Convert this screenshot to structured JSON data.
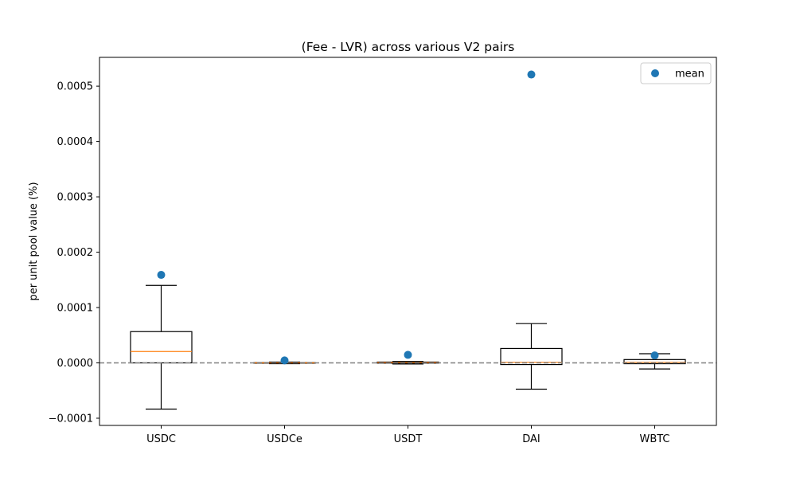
{
  "chart_data": {
    "type": "box",
    "title": "(Fee - LVR) across various V2 pairs",
    "xlabel": "",
    "ylabel": "per unit pool value (%)",
    "ylim": [
      -0.000113,
      0.000552
    ],
    "yticks": [
      "−0.0001",
      "0.0000",
      "0.0001",
      "0.0002",
      "0.0003",
      "0.0004",
      "0.0005"
    ],
    "ytick_values": [
      -0.0001,
      0.0,
      0.0001,
      0.0002,
      0.0003,
      0.0004,
      0.0005
    ],
    "categories": [
      "USDC",
      "USDCe",
      "USDT",
      "DAI",
      "WBTC"
    ],
    "boxes": [
      {
        "whisker_low": -8.35e-05,
        "q1": 0.0,
        "median": 2.05e-05,
        "q3": 5.65e-05,
        "whisker_high": 0.00014,
        "mean": 0.000159
      },
      {
        "whisker_low": -1.5e-06,
        "q1": -5e-07,
        "median": 0.0,
        "q3": 5e-07,
        "whisker_high": 1.5e-06,
        "mean": 4.5e-06
      },
      {
        "whisker_low": -2e-06,
        "q1": -5e-07,
        "median": 5e-07,
        "q3": 1.5e-06,
        "whisker_high": 2.5e-06,
        "mean": 1.45e-05
      },
      {
        "whisker_low": -4.75e-05,
        "q1": -3e-06,
        "median": 1e-06,
        "q3": 2.6e-05,
        "whisker_high": 7.1e-05,
        "mean": 0.000521
      },
      {
        "whisker_low": -1.1e-05,
        "q1": -1.5e-06,
        "median": 1e-06,
        "q3": 6e-06,
        "whisker_high": 1.65e-05,
        "mean": 1.35e-05
      }
    ],
    "reference_line": {
      "y": 0.0,
      "style": "dashed",
      "color": "#808080"
    },
    "legend": {
      "placement": "top-right",
      "entries": [
        {
          "label": "mean",
          "color": "#1f77b4",
          "marker": "circle"
        }
      ]
    },
    "colors": {
      "box": "#000000",
      "median": "#ff7f0e",
      "mean": "#1f77b4"
    },
    "grid": false
  }
}
